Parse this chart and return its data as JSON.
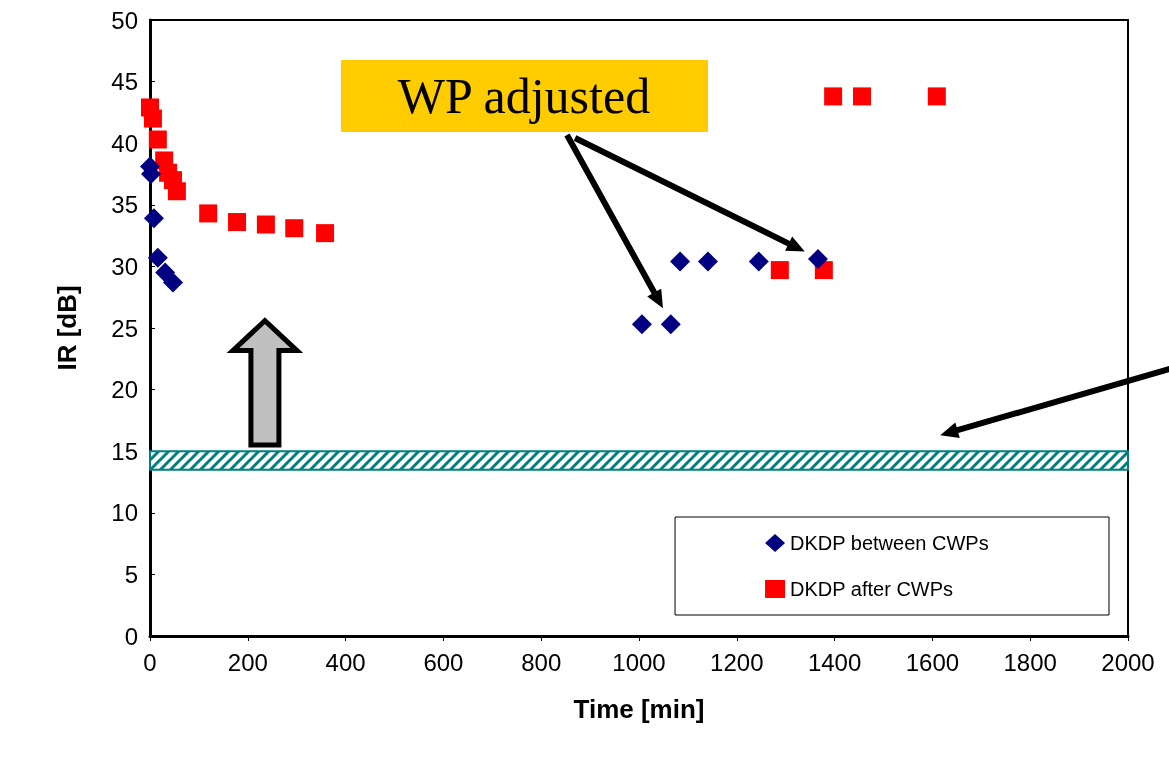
{
  "chart_data": {
    "type": "scatter",
    "xlabel": "Time [min]",
    "ylabel": "IR [dB]",
    "xlim": [
      0,
      2000
    ],
    "xticks": [
      0,
      200,
      400,
      600,
      800,
      1000,
      1200,
      1400,
      1600,
      1800,
      2000
    ],
    "ylim": [
      0,
      50
    ],
    "yticks": [
      0,
      5,
      10,
      15,
      20,
      25,
      30,
      35,
      40,
      45,
      50
    ],
    "grid": false,
    "legend": "bottom right",
    "series": [
      {
        "name": "DKDP between CWPs",
        "color": "#000080",
        "marker": "diamond",
        "x": [
          0,
          2,
          8,
          16,
          31,
          47,
          1006,
          1065,
          1084,
          1141,
          1245,
          1366
        ],
        "values": [
          38.1,
          37.5,
          33.9,
          30.7,
          29.5,
          28.7,
          25.3,
          25.3,
          30.4,
          30.4,
          30.4,
          30.6
        ]
      },
      {
        "name": "DKDP after CWPs",
        "color": "#ff0000",
        "marker": "square",
        "x": [
          0,
          6,
          16,
          29,
          37,
          47,
          55,
          119,
          178,
          237,
          295,
          358,
          1288,
          1378,
          1397,
          1456,
          1609
        ],
        "values": [
          42.9,
          42.0,
          40.3,
          38.6,
          37.6,
          37.0,
          36.1,
          34.3,
          33.6,
          33.4,
          33.1,
          32.7,
          29.7,
          29.7,
          43.8,
          43.8,
          43.8
        ]
      }
    ],
    "bands": [
      {
        "axis": "y",
        "from": 13.5,
        "to": 15,
        "color": "#008080"
      }
    ],
    "annotations": [
      "WP adjusted"
    ]
  }
}
